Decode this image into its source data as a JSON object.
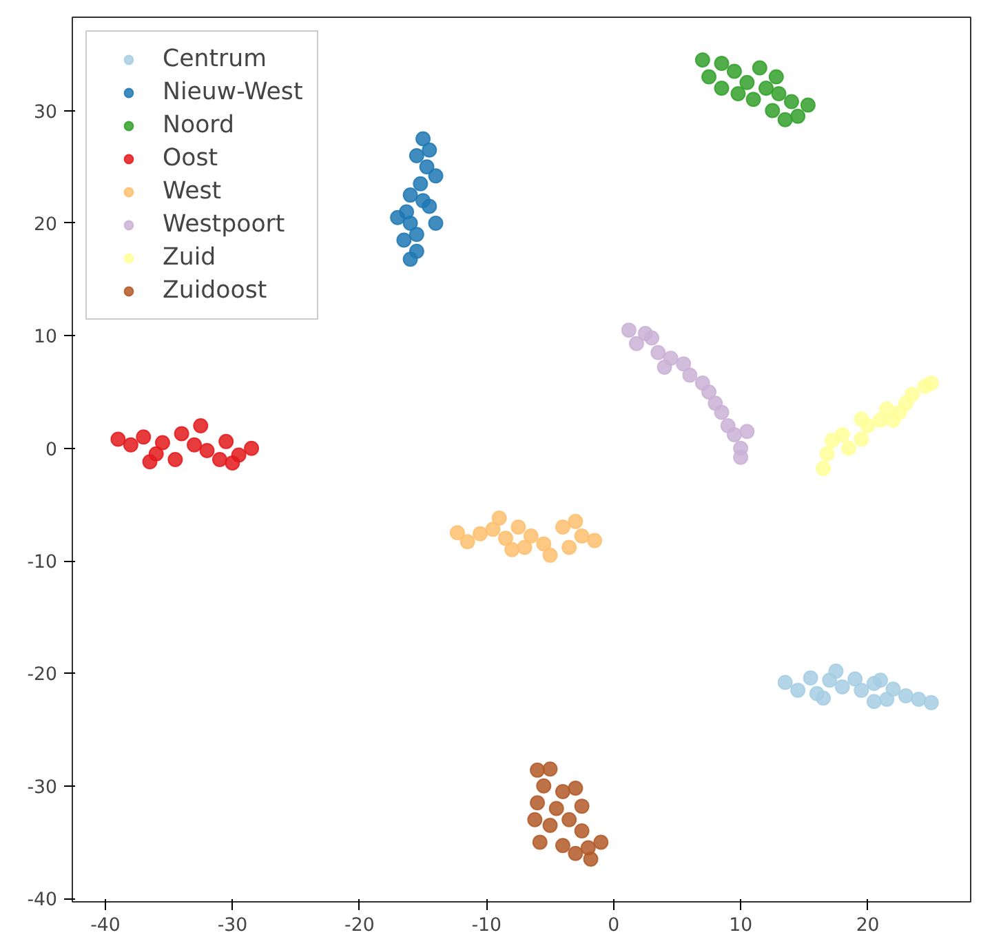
{
  "chart_data": {
    "type": "scatter",
    "xlim": [
      -42.6,
      28.1
    ],
    "ylim": [
      -40.3,
      38.3
    ],
    "xticks": [
      -40,
      -30,
      -20,
      -10,
      0,
      10,
      20
    ],
    "yticks": [
      -40,
      -30,
      -20,
      -10,
      0,
      10,
      20,
      30
    ],
    "grid": false,
    "legend": "top left",
    "marker": "circle",
    "series": [
      {
        "name": "Centrum",
        "color": "#a6cee3",
        "x": [
          13.5,
          14.5,
          15.5,
          16,
          17,
          17.5,
          18,
          19,
          19.5,
          20.5,
          20.5,
          21.5,
          22,
          23,
          24,
          25,
          16.5,
          21
        ],
        "values": [
          -20.8,
          -21.5,
          -20.4,
          -21.8,
          -20.6,
          -19.8,
          -21.2,
          -20.5,
          -21.5,
          -20.9,
          -22.5,
          -22.3,
          -21.4,
          -22,
          -22.3,
          -22.6,
          -22.2,
          -20.6
        ]
      },
      {
        "name": "Nieuw-West",
        "color": "#1f78b4",
        "x": [
          -15,
          -14.5,
          -15.5,
          -14.7,
          -14,
          -15.2,
          -16,
          -15,
          -16.3,
          -17,
          -16,
          -14,
          -15.5,
          -16.5,
          -15.5,
          -16,
          -14.5
        ],
        "values": [
          27.5,
          26.5,
          26,
          25,
          24.2,
          23.5,
          22.5,
          22,
          21,
          20.5,
          20,
          20,
          19,
          18.5,
          17.5,
          16.8,
          21.5
        ]
      },
      {
        "name": "Noord",
        "color": "#33a02c",
        "x": [
          7,
          8.5,
          7.5,
          9.5,
          10.5,
          8.5,
          11.5,
          12,
          11,
          13,
          12.5,
          14,
          15.3,
          13.5,
          14.5,
          9.8,
          12.8
        ],
        "values": [
          34.5,
          34.2,
          33,
          33.5,
          32.5,
          32,
          33.8,
          32,
          31,
          31.5,
          30,
          30.8,
          30.5,
          29.2,
          29.5,
          31.5,
          33
        ]
      },
      {
        "name": "Oost",
        "color": "#e31a1c",
        "x": [
          -39,
          -38,
          -37,
          -36,
          -35.5,
          -34.5,
          -34,
          -33,
          -32.5,
          -32,
          -31,
          -30.5,
          -29.5,
          -28.5,
          -30,
          -36.5
        ],
        "values": [
          0.8,
          0.3,
          1,
          -0.5,
          0.5,
          -1,
          1.3,
          0.3,
          2,
          -0.2,
          -1,
          0.6,
          -0.6,
          0,
          -1.3,
          -1.2
        ]
      },
      {
        "name": "West",
        "color": "#fdbf6f",
        "x": [
          -12.3,
          -11.5,
          -10.5,
          -9.5,
          -9,
          -8.5,
          -7.5,
          -7,
          -6.5,
          -5.5,
          -5,
          -4,
          -3.5,
          -2.5,
          -1.5,
          -3,
          -8
        ],
        "values": [
          -7.5,
          -8.3,
          -7.6,
          -7.2,
          -6.2,
          -8,
          -7,
          -8.8,
          -7.8,
          -8.5,
          -9.5,
          -7,
          -8.8,
          -7.8,
          -8.2,
          -6.5,
          -9
        ]
      },
      {
        "name": "Westpoort",
        "color": "#cab2d6",
        "x": [
          1.2,
          2.5,
          1.8,
          3,
          3.5,
          4.5,
          4,
          5.5,
          6,
          7,
          7.5,
          8,
          8.5,
          9,
          9.5,
          10.5,
          10,
          10
        ],
        "values": [
          10.5,
          10.2,
          9.3,
          9.8,
          8.5,
          8,
          7.2,
          7.5,
          6.5,
          5.8,
          5,
          4,
          3.2,
          2,
          1.2,
          1.5,
          0,
          -0.8
        ]
      },
      {
        "name": "Zuid",
        "color": "#ffff99",
        "x": [
          16.5,
          16.8,
          17.2,
          18.5,
          18,
          19.5,
          20,
          19.5,
          21,
          21.5,
          22,
          23,
          23.5,
          24.5,
          25,
          22.5
        ],
        "values": [
          -1.8,
          -0.5,
          0.7,
          0,
          1.2,
          0.8,
          2,
          2.6,
          2.5,
          3.5,
          2.5,
          4,
          4.8,
          5.5,
          5.8,
          3.2
        ]
      },
      {
        "name": "Zuidoost",
        "color": "#b15928",
        "x": [
          -6,
          -5,
          -5.5,
          -4,
          -3,
          -6,
          -4.5,
          -2.5,
          -6.2,
          -5,
          -3.5,
          -2.5,
          -5.8,
          -4,
          -2,
          -1,
          -1.8,
          -3
        ],
        "values": [
          -28.6,
          -28.5,
          -30,
          -30.5,
          -30.2,
          -31.5,
          -32,
          -31.8,
          -33,
          -33.5,
          -33,
          -34,
          -35,
          -35.3,
          -35.5,
          -35,
          -36.5,
          -36
        ]
      }
    ]
  }
}
